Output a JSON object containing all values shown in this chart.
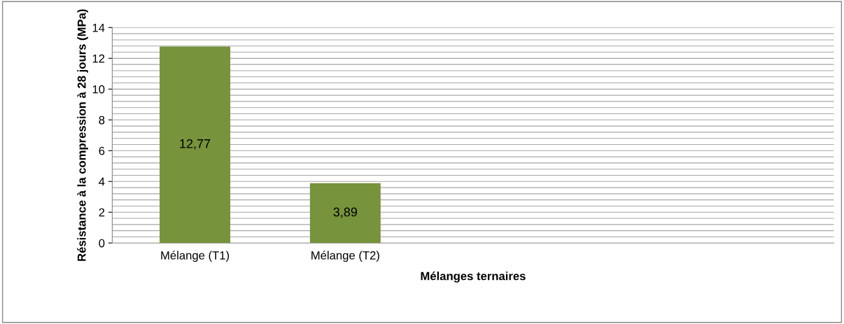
{
  "chart_data": {
    "type": "bar",
    "xlabel": "Mélanges ternaires",
    "ylabel": "Résistance à la compression à 28 jours (MPa)",
    "categories": [
      "Mélange (T1)",
      "Mélange (T2)",
      null,
      null,
      null
    ],
    "values": [
      12.77,
      3.89,
      null,
      null,
      null
    ],
    "value_labels": [
      "12,77",
      "3,89",
      null,
      null,
      null
    ],
    "color": "#77933c",
    "ylim": [
      0,
      14
    ],
    "yticks": [
      0,
      2,
      4,
      6,
      8,
      10,
      12,
      14
    ],
    "grid": "y"
  }
}
